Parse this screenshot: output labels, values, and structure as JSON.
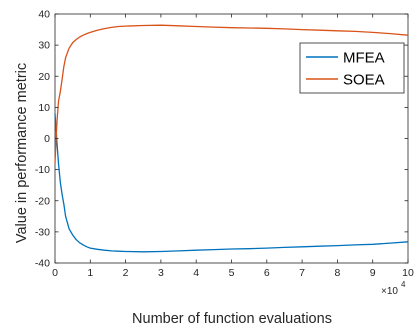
{
  "chart_data": {
    "type": "line",
    "title": "",
    "xlabel": "Number of function evaluations",
    "ylabel": "Value in performance metric",
    "x_multiplier_label": "×10",
    "x_multiplier_exp": "4",
    "xlim": [
      0,
      10
    ],
    "ylim": [
      -40,
      40
    ],
    "xticks": [
      "0",
      "1",
      "2",
      "3",
      "4",
      "5",
      "6",
      "7",
      "8",
      "9",
      "10"
    ],
    "yticks": [
      "-40",
      "-30",
      "-20",
      "-10",
      "0",
      "10",
      "20",
      "30",
      "40"
    ],
    "legend_position": "top-right",
    "grid": false,
    "series": [
      {
        "name": "MFEA",
        "color": "#0072BD",
        "x": [
          0,
          0.03,
          0.06,
          0.1,
          0.15,
          0.2,
          0.25,
          0.3,
          0.4,
          0.5,
          0.6,
          0.7,
          0.8,
          0.9,
          1.0,
          1.2,
          1.4,
          1.6,
          1.8,
          2.0,
          2.5,
          3.0,
          3.5,
          4.0,
          4.5,
          5.0,
          5.5,
          6.0,
          6.5,
          7.0,
          7.5,
          8.0,
          8.5,
          9.0,
          9.5,
          10.0
        ],
        "y": [
          8,
          3,
          -2,
          -8,
          -14,
          -18,
          -21,
          -25,
          -29,
          -31,
          -32.5,
          -33.5,
          -34.2,
          -34.8,
          -35.2,
          -35.6,
          -35.9,
          -36.1,
          -36.2,
          -36.3,
          -36.4,
          -36.3,
          -36.1,
          -35.9,
          -35.7,
          -35.5,
          -35.4,
          -35.2,
          -35.0,
          -34.8,
          -34.6,
          -34.4,
          -34.2,
          -34.0,
          -33.6,
          -33.2
        ]
      },
      {
        "name": "SOEA",
        "color": "#D95319",
        "x": [
          0,
          0.03,
          0.06,
          0.1,
          0.15,
          0.2,
          0.25,
          0.3,
          0.4,
          0.5,
          0.6,
          0.7,
          0.8,
          0.9,
          1.0,
          1.2,
          1.4,
          1.6,
          1.8,
          2.0,
          2.5,
          3.0,
          3.5,
          4.0,
          4.5,
          5.0,
          5.5,
          6.0,
          6.5,
          7.0,
          7.5,
          8.0,
          8.5,
          9.0,
          9.5,
          10.0
        ],
        "y": [
          -8,
          0,
          6,
          12,
          15,
          19,
          23,
          26,
          29,
          30.8,
          31.8,
          32.6,
          33.2,
          33.7,
          34.1,
          34.8,
          35.3,
          35.7,
          36.0,
          36.1,
          36.3,
          36.4,
          36.2,
          36.0,
          35.8,
          35.6,
          35.5,
          35.4,
          35.2,
          35.0,
          34.8,
          34.6,
          34.4,
          34.1,
          33.7,
          33.2
        ]
      }
    ]
  }
}
